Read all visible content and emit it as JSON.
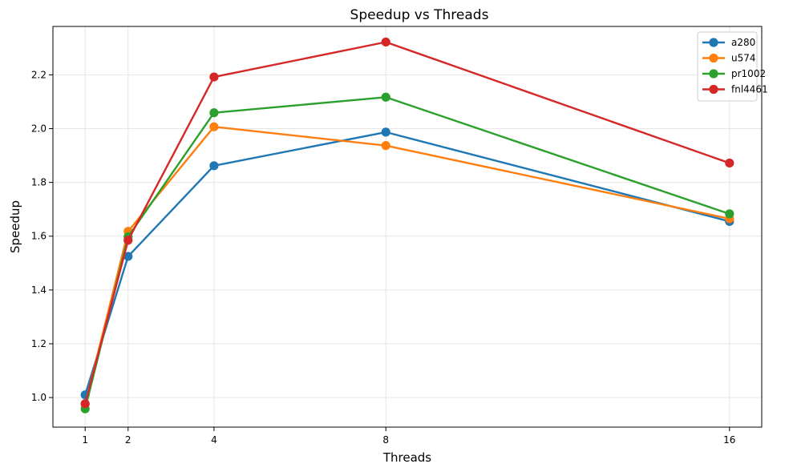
{
  "chart_data": {
    "type": "line",
    "title": "Speedup vs Threads",
    "xlabel": "Threads",
    "ylabel": "Speedup",
    "x": [
      1,
      2,
      4,
      8,
      16
    ],
    "x_ticks": [
      "1",
      "2",
      "4",
      "8",
      "16"
    ],
    "y_ticks": [
      "1.0",
      "1.2",
      "1.4",
      "1.6",
      "1.8",
      "2.0",
      "2.2"
    ],
    "xlim": [
      0.25,
      16.75
    ],
    "ylim": [
      0.89,
      2.38
    ],
    "grid": true,
    "legend_position": "top-right",
    "series": [
      {
        "name": "a280",
        "color": "#1f77b4",
        "values": [
          1.01,
          1.525,
          1.862,
          1.987,
          1.655
        ]
      },
      {
        "name": "u574",
        "color": "#ff7f0e",
        "values": [
          0.975,
          1.618,
          2.007,
          1.937,
          1.665
        ]
      },
      {
        "name": "pr1002",
        "color": "#2ca02c",
        "values": [
          0.958,
          1.598,
          2.059,
          2.117,
          1.683
        ]
      },
      {
        "name": "fnl4461",
        "color": "#d62728",
        "values": [
          0.977,
          1.585,
          2.192,
          2.322,
          1.872
        ]
      }
    ]
  }
}
